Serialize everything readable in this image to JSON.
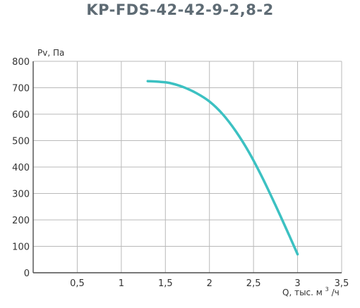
{
  "chart_data": {
    "type": "line",
    "title": "KP-FDS-42-42-9-2,8-2",
    "xlabel_main": "Q, тыс. м",
    "xlabel_sup": "3",
    "xlabel_tail": "/ч",
    "ylabel": "Pv, Па",
    "xlim": [
      0,
      3.5
    ],
    "ylim": [
      0,
      800
    ],
    "x_ticks": [
      {
        "value": 0.5,
        "label": "0,5"
      },
      {
        "value": 1.0,
        "label": "1"
      },
      {
        "value": 1.5,
        "label": "1,5"
      },
      {
        "value": 2.0,
        "label": "2"
      },
      {
        "value": 2.5,
        "label": "2,5"
      },
      {
        "value": 3.0,
        "label": "3"
      },
      {
        "value": 3.5,
        "label": "3,5"
      }
    ],
    "y_ticks": [
      {
        "value": 0,
        "label": "0"
      },
      {
        "value": 100,
        "label": "100"
      },
      {
        "value": 200,
        "label": "200"
      },
      {
        "value": 300,
        "label": "300"
      },
      {
        "value": 400,
        "label": "400"
      },
      {
        "value": 500,
        "label": "500"
      },
      {
        "value": 600,
        "label": "600"
      },
      {
        "value": 700,
        "label": "700"
      },
      {
        "value": 800,
        "label": "800"
      }
    ],
    "grid": true,
    "series": [
      {
        "color": "#3cc1c2",
        "points": [
          [
            1.3,
            725
          ],
          [
            1.45,
            722
          ],
          [
            1.55,
            718
          ],
          [
            1.7,
            703
          ],
          [
            1.85,
            680
          ],
          [
            2.0,
            648
          ],
          [
            2.15,
            600
          ],
          [
            2.3,
            535
          ],
          [
            2.45,
            455
          ],
          [
            2.6,
            360
          ],
          [
            2.75,
            255
          ],
          [
            2.9,
            145
          ],
          [
            3.0,
            70
          ]
        ]
      }
    ]
  }
}
